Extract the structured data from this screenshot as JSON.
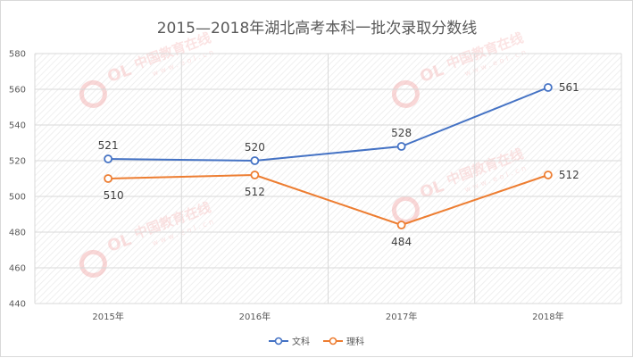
{
  "chart_data": {
    "type": "line",
    "title": "2015—2018年湖北高考本科一批次录取分数线",
    "categories": [
      "2015年",
      "2016年",
      "2017年",
      "2018年"
    ],
    "ylim": [
      440,
      580
    ],
    "yticks": [
      440,
      460,
      480,
      500,
      520,
      540,
      560,
      580
    ],
    "grid": true,
    "legend_position": "bottom",
    "series": [
      {
        "name": "文科",
        "values": [
          521,
          520,
          528,
          561
        ],
        "color": "#4472c4",
        "label_position": "above"
      },
      {
        "name": "理科",
        "values": [
          510,
          512,
          484,
          512
        ],
        "color": "#ed7d31",
        "label_position": "below"
      }
    ],
    "watermark": {
      "text": "中国教育在线",
      "subtext": "www.eol.cn",
      "logo": "eol"
    }
  }
}
